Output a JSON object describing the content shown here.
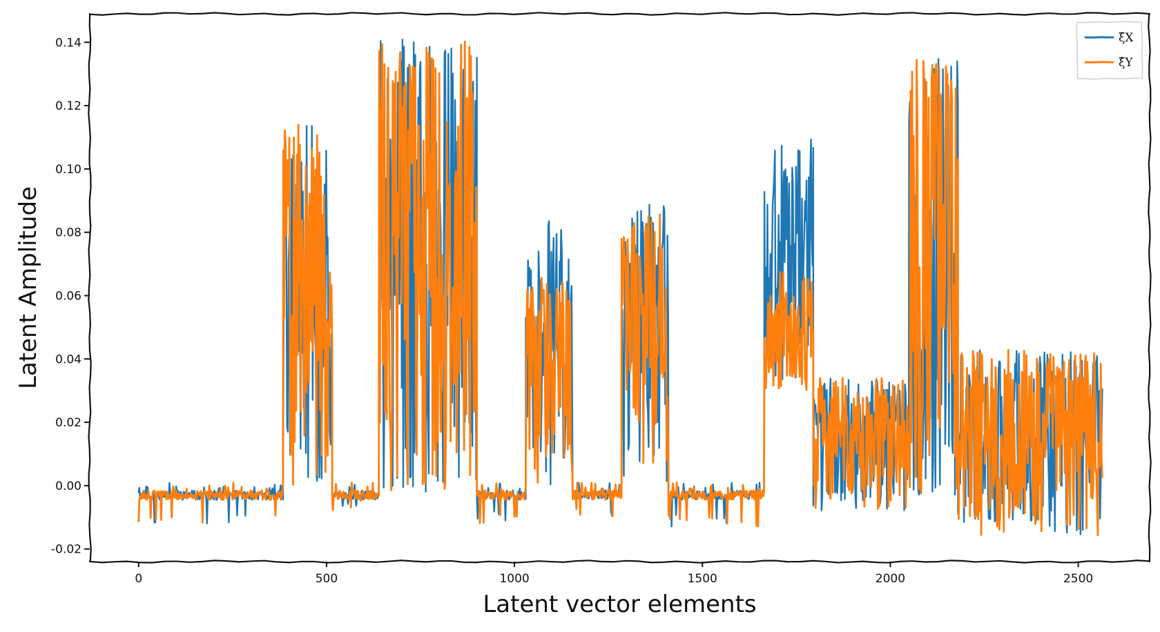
{
  "chart_data": {
    "type": "line",
    "title": "",
    "xlabel": "Latent vector elements",
    "ylabel": "Latent Amplitude",
    "xlim": [
      -130,
      2690
    ],
    "ylim": [
      -0.024,
      0.149
    ],
    "xticks": [
      0,
      500,
      1000,
      1500,
      2000,
      2500
    ],
    "xtick_labels": [
      "0",
      "500",
      "1000",
      "1500",
      "2000",
      "2500"
    ],
    "yticks": [
      -0.02,
      0.0,
      0.02,
      0.04,
      0.06,
      0.08,
      0.1,
      0.12,
      0.14
    ],
    "ytick_labels": [
      "-0.02",
      "0.00",
      "0.02",
      "0.04",
      "0.06",
      "0.08",
      "0.10",
      "0.12",
      "0.14"
    ],
    "grid": false,
    "legend_position": "top-right",
    "series": [
      {
        "name": "ξ̂X",
        "color": "#1f77b4",
        "sampled_envelope": [
          {
            "x_range": [
              0,
              385
            ],
            "min": -0.013,
            "max": -0.001
          },
          {
            "x_range": [
              385,
              515
            ],
            "min": 0.0,
            "max": 0.117
          },
          {
            "x_range": [
              515,
              640
            ],
            "min": -0.008,
            "max": -0.002
          },
          {
            "x_range": [
              640,
              900
            ],
            "min": -0.002,
            "max": 0.141
          },
          {
            "x_range": [
              900,
              1030
            ],
            "min": -0.012,
            "max": -0.002
          },
          {
            "x_range": [
              1030,
              1155
            ],
            "min": 0.0,
            "max": 0.084
          },
          {
            "x_range": [
              1155,
              1285
            ],
            "min": -0.01,
            "max": -0.002
          },
          {
            "x_range": [
              1285,
              1410
            ],
            "min": 0.0,
            "max": 0.09
          },
          {
            "x_range": [
              1410,
              1665
            ],
            "min": -0.013,
            "max": -0.002
          },
          {
            "x_range": [
              1665,
              1795
            ],
            "min": 0.031,
            "max": 0.11
          },
          {
            "x_range": [
              1795,
              2050
            ],
            "min": -0.008,
            "max": 0.034
          },
          {
            "x_range": [
              2050,
              2180
            ],
            "min": -0.003,
            "max": 0.135
          },
          {
            "x_range": [
              2180,
              2565
            ],
            "min": -0.016,
            "max": 0.043
          }
        ]
      },
      {
        "name": "ξ̂Y",
        "color": "#ff7f0e",
        "sampled_envelope": [
          {
            "x_range": [
              0,
              385
            ],
            "min": -0.013,
            "max": -0.001
          },
          {
            "x_range": [
              385,
              515
            ],
            "min": 0.0,
            "max": 0.117
          },
          {
            "x_range": [
              515,
              640
            ],
            "min": -0.008,
            "max": -0.002
          },
          {
            "x_range": [
              640,
              900
            ],
            "min": -0.002,
            "max": 0.141
          },
          {
            "x_range": [
              900,
              1030
            ],
            "min": -0.012,
            "max": -0.002
          },
          {
            "x_range": [
              1030,
              1155
            ],
            "min": 0.0,
            "max": 0.067
          },
          {
            "x_range": [
              1155,
              1285
            ],
            "min": -0.01,
            "max": -0.002
          },
          {
            "x_range": [
              1285,
              1410
            ],
            "min": 0.0,
            "max": 0.086
          },
          {
            "x_range": [
              1410,
              1665
            ],
            "min": -0.013,
            "max": -0.002
          },
          {
            "x_range": [
              1665,
              1795
            ],
            "min": 0.029,
            "max": 0.068
          },
          {
            "x_range": [
              1795,
              2050
            ],
            "min": -0.008,
            "max": 0.034
          },
          {
            "x_range": [
              2050,
              2180
            ],
            "min": -0.003,
            "max": 0.135
          },
          {
            "x_range": [
              2180,
              2565
            ],
            "min": -0.016,
            "max": 0.043
          }
        ]
      }
    ],
    "legend": [
      {
        "label": "ξ̂X",
        "color": "#1f77b4"
      },
      {
        "label": "ξ̂Y",
        "color": "#ff7f0e"
      }
    ]
  }
}
